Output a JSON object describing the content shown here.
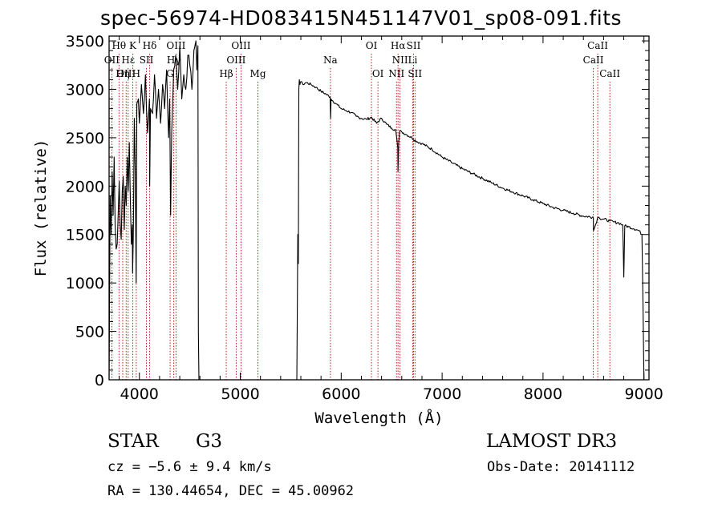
{
  "chart_data": {
    "type": "line",
    "title": "spec-56974-HD083415N451147V01_sp08-091.fits",
    "xlabel": "Wavelength (Å)",
    "ylabel": "Flux (relative)",
    "xlim": [
      3700,
      9050
    ],
    "ylim": [
      0,
      3550
    ],
    "xticks": [
      "4000",
      "5000",
      "6000",
      "7000",
      "8000",
      "9000"
    ],
    "yticks": [
      "0",
      "500",
      "1000",
      "1500",
      "2000",
      "2500",
      "3000",
      "3500"
    ],
    "series": [
      {
        "name": "flux",
        "x": [
          3700,
          3710,
          3720,
          3730,
          3740,
          3750,
          3760,
          3770,
          3780,
          3790,
          3800,
          3810,
          3820,
          3830,
          3840,
          3850,
          3860,
          3870,
          3880,
          3890,
          3900,
          3910,
          3920,
          3930,
          3933,
          3940,
          3950,
          3960,
          3968,
          3975,
          3990,
          4000,
          4020,
          4040,
          4060,
          4080,
          4100,
          4102,
          4110,
          4130,
          4150,
          4170,
          4190,
          4210,
          4230,
          4250,
          4270,
          4290,
          4300,
          4310,
          4320,
          4340,
          4360,
          4380,
          4400,
          4420,
          4440,
          4460,
          4480,
          4500,
          4520,
          4540,
          4560,
          4570,
          4580,
          4585,
          4590,
          5560,
          5565,
          5570,
          5575,
          5580,
          5585,
          5590,
          5600,
          5620,
          5650,
          5700,
          5750,
          5800,
          5850,
          5890,
          5895,
          5900,
          5950,
          6000,
          6050,
          6100,
          6150,
          6200,
          6250,
          6300,
          6350,
          6400,
          6450,
          6500,
          6540,
          6560,
          6563,
          6570,
          6580,
          6600,
          6650,
          6700,
          6750,
          6800,
          6900,
          7000,
          7100,
          7200,
          7300,
          7400,
          7500,
          7600,
          7700,
          7800,
          7900,
          8000,
          8100,
          8200,
          8300,
          8400,
          8498,
          8500,
          8520,
          8542,
          8560,
          8600,
          8662,
          8700,
          8750,
          8790,
          8800,
          8810,
          8850,
          8900,
          8950,
          8980,
          8990,
          9000
        ],
        "values": [
          0,
          1900,
          1500,
          2150,
          1700,
          2300,
          1600,
          1350,
          1400,
          1700,
          2050,
          1600,
          1450,
          1950,
          2100,
          1550,
          2000,
          1800,
          2300,
          1950,
          2450,
          1900,
          1400,
          1600,
          1100,
          1500,
          2700,
          2100,
          1000,
          2850,
          2900,
          2650,
          3050,
          2750,
          3150,
          2550,
          2900,
          2000,
          2800,
          2750,
          3150,
          2700,
          3000,
          2650,
          3050,
          2800,
          3200,
          2500,
          2900,
          1700,
          2550,
          3200,
          3350,
          3000,
          3450,
          2900,
          3150,
          3000,
          3350,
          3250,
          3000,
          3400,
          3500,
          3200,
          3450,
          500,
          0,
          0,
          700,
          1500,
          1200,
          3000,
          3100,
          3050,
          3080,
          3050,
          3070,
          3050,
          3020,
          2980,
          2950,
          2920,
          2700,
          2900,
          2850,
          2800,
          2780,
          2760,
          2720,
          2700,
          2690,
          2710,
          2650,
          2700,
          2640,
          2600,
          2580,
          2400,
          2150,
          2450,
          2570,
          2560,
          2530,
          2500,
          2460,
          2440,
          2380,
          2300,
          2240,
          2180,
          2130,
          2080,
          2030,
          1980,
          1940,
          1900,
          1860,
          1820,
          1780,
          1750,
          1720,
          1690,
          1680,
          1540,
          1600,
          1680,
          1670,
          1660,
          1640,
          1630,
          1620,
          1600,
          1060,
          1590,
          1580,
          1560,
          1540,
          1500,
          800,
          0
        ]
      }
    ],
    "lines": [
      {
        "label": "Hθ",
        "x": 3798,
        "row": 0
      },
      {
        "label": "OII",
        "x": 3727,
        "row": 1
      },
      {
        "label": "OIII",
        "x": 3869,
        "row": 2
      },
      {
        "label": "K",
        "x": 3934,
        "row": 0
      },
      {
        "label": "Hε",
        "x": 3889,
        "row": 1
      },
      {
        "label": "Hη",
        "x": 3835,
        "row": 2
      },
      {
        "label": "Hδ",
        "x": 4102,
        "row": 0
      },
      {
        "label": "SII",
        "x": 4070,
        "row": 1
      },
      {
        "label": "H",
        "x": 3969,
        "row": 2
      },
      {
        "label": "OIII",
        "x": 4363,
        "row": 0
      },
      {
        "label": "Hγ",
        "x": 4341,
        "row": 1
      },
      {
        "label": "G",
        "x": 4305,
        "row": 2
      },
      {
        "label": "OIII",
        "x": 5007,
        "row": 0
      },
      {
        "label": "OIII",
        "x": 4959,
        "row": 1
      },
      {
        "label": "Hβ",
        "x": 4861,
        "row": 2
      },
      {
        "label": "Mg",
        "x": 5175,
        "row": 2
      },
      {
        "label": "Na",
        "x": 5893,
        "row": 1
      },
      {
        "label": "OI",
        "x": 6300,
        "row": 0
      },
      {
        "label": "OI",
        "x": 6364,
        "row": 2
      },
      {
        "label": "Hα",
        "x": 6563,
        "row": 0
      },
      {
        "label": "NII",
        "x": 6583,
        "row": 1
      },
      {
        "label": "NII",
        "x": 6548,
        "row": 2
      },
      {
        "label": "SII",
        "x": 6717,
        "row": 0
      },
      {
        "label": "Li",
        "x": 6708,
        "row": 1
      },
      {
        "label": "SII",
        "x": 6731,
        "row": 2
      },
      {
        "label": "CaII",
        "x": 8542,
        "row": 0
      },
      {
        "label": "CaII",
        "x": 8498,
        "row": 1
      },
      {
        "label": "CaII",
        "x": 8662,
        "row": 2
      }
    ]
  },
  "info": {
    "object_class": "STAR",
    "subclass": "G3",
    "survey": "LAMOST DR3",
    "redshift": "cz = −5.6 ± 9.4 km/s",
    "obs_date": "Obs-Date: 20141112",
    "coords": "RA = 130.44654, DEC =  45.00962"
  },
  "colors": {
    "spectrum": "#000000",
    "line_marker": "#c00000",
    "axes": "#000000"
  }
}
